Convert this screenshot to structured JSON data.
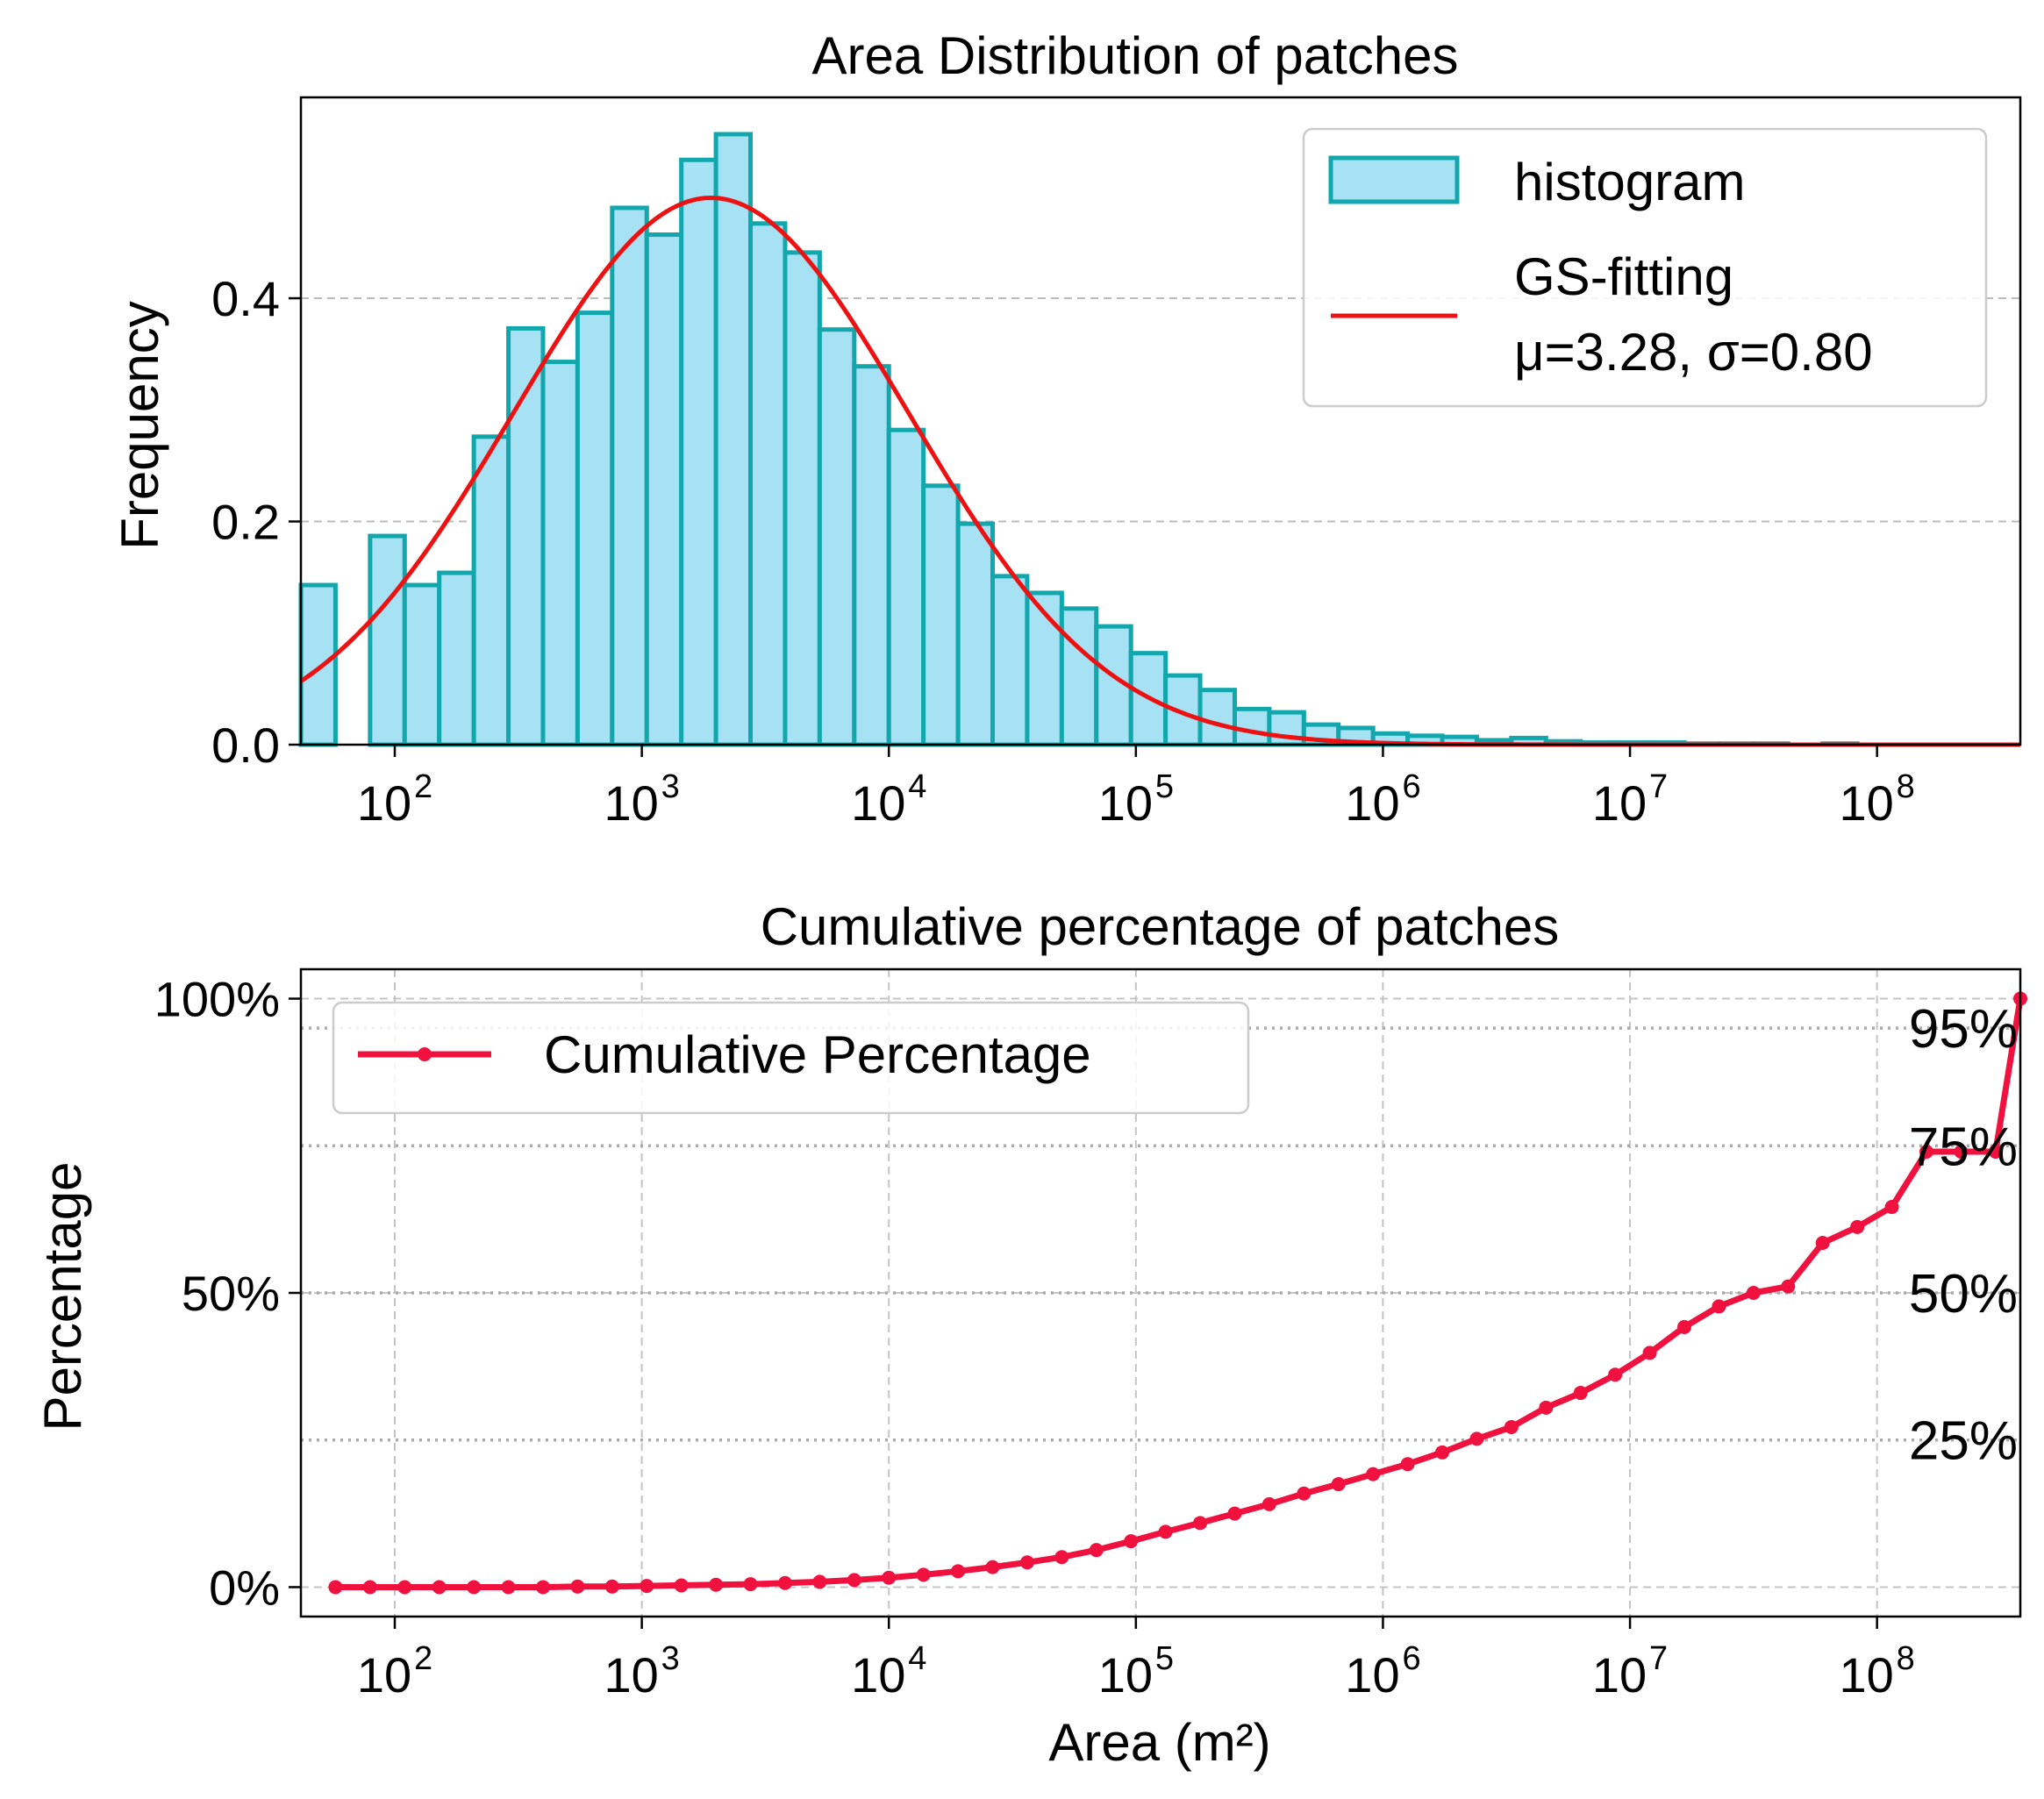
{
  "chart_data": [
    {
      "type": "bar",
      "title": "Area Distribution of patches",
      "xlabel": "",
      "ylabel": "Frequency",
      "xscale": "log10",
      "xlim_log10": [
        1.62,
        8.58
      ],
      "ylim": [
        0,
        0.58
      ],
      "grid": "horizontal dashed",
      "y_ticks": [
        "0.0",
        "0.2",
        "0.4"
      ],
      "y_tick_values": [
        0,
        0.2,
        0.4
      ],
      "x_ticks_base": "10",
      "x_ticks_exp": [
        "2",
        "3",
        "4",
        "5",
        "6",
        "7",
        "8"
      ],
      "x_tick_values_log10": [
        2,
        3,
        4,
        5,
        6,
        7,
        8
      ],
      "bin_width_log10": 0.14,
      "bin_left_edges_log10": [
        1.62,
        1.76,
        1.9,
        2.04,
        2.18,
        2.32,
        2.46,
        2.6,
        2.74,
        2.88,
        3.02,
        3.16,
        3.3,
        3.44,
        3.58,
        3.72,
        3.86,
        4.0,
        4.14,
        4.28,
        4.42,
        4.56,
        4.7,
        4.84,
        4.98,
        5.12,
        5.26,
        5.4,
        5.54,
        5.68,
        5.82,
        5.96,
        6.1,
        6.24,
        6.38,
        6.52,
        6.66,
        6.8,
        6.94,
        7.08,
        7.22,
        7.36,
        7.5,
        7.64,
        7.78,
        7.92,
        8.06,
        8.2,
        8.34,
        8.48
      ],
      "histogram_values": [
        0.143,
        0.0,
        0.187,
        0.143,
        0.154,
        0.276,
        0.373,
        0.343,
        0.387,
        0.481,
        0.457,
        0.524,
        0.547,
        0.467,
        0.441,
        0.372,
        0.339,
        0.282,
        0.232,
        0.198,
        0.151,
        0.136,
        0.122,
        0.106,
        0.082,
        0.062,
        0.049,
        0.032,
        0.029,
        0.018,
        0.015,
        0.01,
        0.008,
        0.007,
        0.004,
        0.006,
        0.003,
        0.002,
        0.002,
        0.002,
        0.001,
        0.001,
        0.001,
        0.0,
        0.001,
        0.0,
        0.0,
        0.0,
        0.0,
        0.0
      ],
      "fit": {
        "type": "gaussian",
        "mu": 3.28,
        "sigma": 0.8,
        "peak_y": 0.49
      },
      "legend": {
        "position": "top-right",
        "entries": [
          {
            "label": "histogram",
            "style": "bar"
          },
          {
            "label": "GS-fitting",
            "label2": "μ=3.28, σ=0.80",
            "style": "line"
          }
        ]
      },
      "colors": {
        "bar_fill": "#a6e1f4",
        "bar_edge": "#12a7ad",
        "fit_line": "#ee1111"
      }
    },
    {
      "type": "line",
      "title": "Cumulative percentage of patches",
      "xlabel": "Area (m²)",
      "ylabel": "Percentage",
      "xscale": "log10",
      "xlim_log10": [
        1.62,
        8.58
      ],
      "ylim": [
        -5,
        105
      ],
      "grid": "both dashed",
      "y_ticks": [
        "0%",
        "50%",
        "100%"
      ],
      "y_tick_values": [
        0,
        50,
        100
      ],
      "x_ticks_base": "10",
      "x_ticks_exp": [
        "2",
        "3",
        "4",
        "5",
        "6",
        "7",
        "8"
      ],
      "x_tick_values_log10": [
        2,
        3,
        4,
        5,
        6,
        7,
        8
      ],
      "reference_lines": [
        {
          "label": "95%",
          "value": 95
        },
        {
          "label": "75%",
          "value": 75
        },
        {
          "label": "50%",
          "value": 50
        },
        {
          "label": "25%",
          "value": 25
        }
      ],
      "series": [
        {
          "name": "Cumulative Percentage",
          "x_log10": [
            1.76,
            1.9,
            2.04,
            2.18,
            2.32,
            2.46,
            2.6,
            2.74,
            2.88,
            3.02,
            3.16,
            3.3,
            3.44,
            3.58,
            3.72,
            3.86,
            4.0,
            4.14,
            4.28,
            4.42,
            4.56,
            4.7,
            4.84,
            4.98,
            5.12,
            5.26,
            5.4,
            5.54,
            5.68,
            5.82,
            5.96,
            6.1,
            6.24,
            6.38,
            6.52,
            6.66,
            6.8,
            6.94,
            7.08,
            7.22,
            7.36,
            7.5,
            7.64,
            7.78,
            7.92,
            8.06,
            8.2,
            8.34,
            8.48,
            8.58
          ],
          "values": [
            0.0,
            0.0,
            0.0,
            0.0,
            0.0,
            0.0,
            0.0,
            0.1,
            0.1,
            0.2,
            0.3,
            0.4,
            0.5,
            0.7,
            0.9,
            1.2,
            1.6,
            2.1,
            2.7,
            3.4,
            4.2,
            5.1,
            6.3,
            7.8,
            9.4,
            10.9,
            12.5,
            14.1,
            15.9,
            17.5,
            19.2,
            20.9,
            22.9,
            25.2,
            27.2,
            30.5,
            33.0,
            36.1,
            39.8,
            44.2,
            47.7,
            50.0,
            51.1,
            58.5,
            61.2,
            64.6,
            74.0,
            74.0,
            74.0,
            100.0
          ]
        }
      ],
      "legend": {
        "position": "upper-left",
        "entries": [
          {
            "label": "Cumulative Percentage",
            "style": "line-marker"
          }
        ]
      },
      "colors": {
        "line": "#f0113f",
        "ref_line": "#aaaaaa"
      }
    }
  ]
}
